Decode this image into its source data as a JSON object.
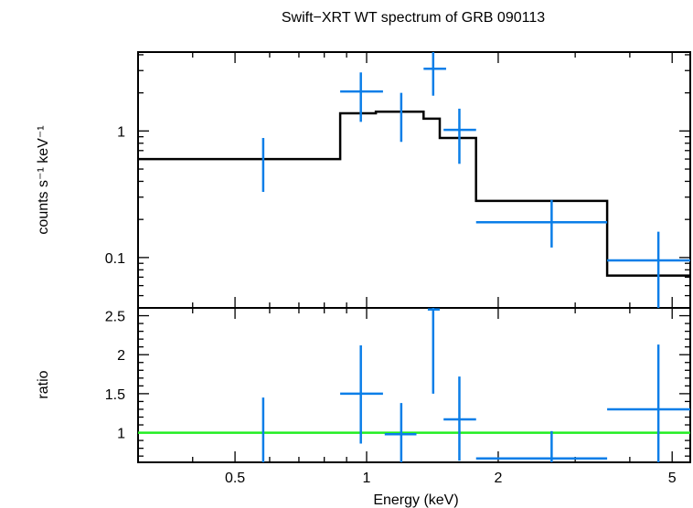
{
  "chart_data": [
    {
      "panel": "spectrum",
      "type": "scatter",
      "title": "Swift−XRT WT spectrum of GRB 090113",
      "xlabel": "Energy (keV)",
      "ylabel": "counts s⁻¹ keV⁻¹",
      "xscale": "log",
      "yscale": "log",
      "xlim": [
        0.3,
        5.5
      ],
      "ylim": [
        0.04,
        4.2
      ],
      "xticks": [
        {
          "value": 0.5,
          "label": "0.5"
        },
        {
          "value": 1,
          "label": "1"
        },
        {
          "value": 2,
          "label": "2"
        },
        {
          "value": 5,
          "label": "5"
        }
      ],
      "yticks": [
        {
          "value": 0.1,
          "label": "0.1"
        },
        {
          "value": 1,
          "label": "1"
        }
      ],
      "colors": {
        "data": "#0a7ee8",
        "model": "#000000"
      },
      "data_points": [
        {
          "x": 0.58,
          "xerr": [
            0.58,
            0.58
          ],
          "y": 0.58,
          "yerr": [
            0.33,
            0.88
          ]
        },
        {
          "x": 0.97,
          "xerr": [
            0.87,
            1.09
          ],
          "y": 2.05,
          "yerr": [
            1.18,
            2.9
          ]
        },
        {
          "x": 1.2,
          "xerr": [
            1.2,
            1.2
          ],
          "y": 1.35,
          "yerr": [
            0.82,
            2.0
          ]
        },
        {
          "x": 1.42,
          "xerr": [
            1.35,
            1.52
          ],
          "y": 3.1,
          "yerr": [
            1.9,
            4.2
          ]
        },
        {
          "x": 1.63,
          "xerr": [
            1.5,
            1.78
          ],
          "y": 1.02,
          "yerr": [
            0.55,
            1.5
          ]
        },
        {
          "x": 2.65,
          "xerr": [
            1.78,
            3.55
          ],
          "y": 0.19,
          "yerr": [
            0.12,
            0.285
          ]
        },
        {
          "x": 4.65,
          "xerr": [
            3.55,
            5.5
          ],
          "y": 0.095,
          "yerr": [
            0.04,
            0.16
          ]
        }
      ],
      "model_steps": [
        {
          "x0": 0.3,
          "x1": 0.87,
          "y": 0.6
        },
        {
          "x0": 0.87,
          "x1": 1.05,
          "y": 1.38
        },
        {
          "x0": 1.05,
          "x1": 1.35,
          "y": 1.42
        },
        {
          "x0": 1.35,
          "x1": 1.47,
          "y": 1.25
        },
        {
          "x0": 1.47,
          "x1": 1.78,
          "y": 0.88
        },
        {
          "x0": 1.78,
          "x1": 3.55,
          "y": 0.28
        },
        {
          "x0": 3.55,
          "x1": 5.5,
          "y": 0.072
        }
      ]
    },
    {
      "panel": "ratio",
      "type": "scatter",
      "xlabel": "Energy (keV)",
      "ylabel": "ratio",
      "xscale": "log",
      "xlim": [
        0.3,
        5.5
      ],
      "ylim": [
        0.62,
        2.6
      ],
      "yticks": [
        {
          "value": 1,
          "label": "1"
        },
        {
          "value": 1.5,
          "label": "1.5"
        },
        {
          "value": 2,
          "label": "2"
        },
        {
          "value": 2.5,
          "label": "2.5"
        }
      ],
      "reference_line": {
        "y": 1,
        "color": "#22ee22"
      },
      "colors": {
        "data": "#0a7ee8"
      },
      "data_points": [
        {
          "x": 0.58,
          "xerr": [
            0.58,
            0.58
          ],
          "y": 0.98,
          "yerr": [
            0.62,
            1.45
          ]
        },
        {
          "x": 0.97,
          "xerr": [
            0.87,
            1.09
          ],
          "y": 1.5,
          "yerr": [
            0.86,
            2.12
          ]
        },
        {
          "x": 1.2,
          "xerr": [
            1.1,
            1.3
          ],
          "y": 0.98,
          "yerr": [
            0.62,
            1.38
          ]
        },
        {
          "x": 1.42,
          "xerr": [
            1.38,
            1.47
          ],
          "y": 2.58,
          "yerr": [
            1.5,
            2.6
          ]
        },
        {
          "x": 1.63,
          "xerr": [
            1.5,
            1.78
          ],
          "y": 1.17,
          "yerr": [
            0.64,
            1.72
          ]
        },
        {
          "x": 2.65,
          "xerr": [
            1.78,
            3.55
          ],
          "y": 0.67,
          "yerr": [
            0.62,
            1.02
          ]
        },
        {
          "x": 4.65,
          "xerr": [
            3.55,
            5.5
          ],
          "y": 1.3,
          "yerr": [
            0.62,
            2.13
          ]
        }
      ]
    }
  ]
}
